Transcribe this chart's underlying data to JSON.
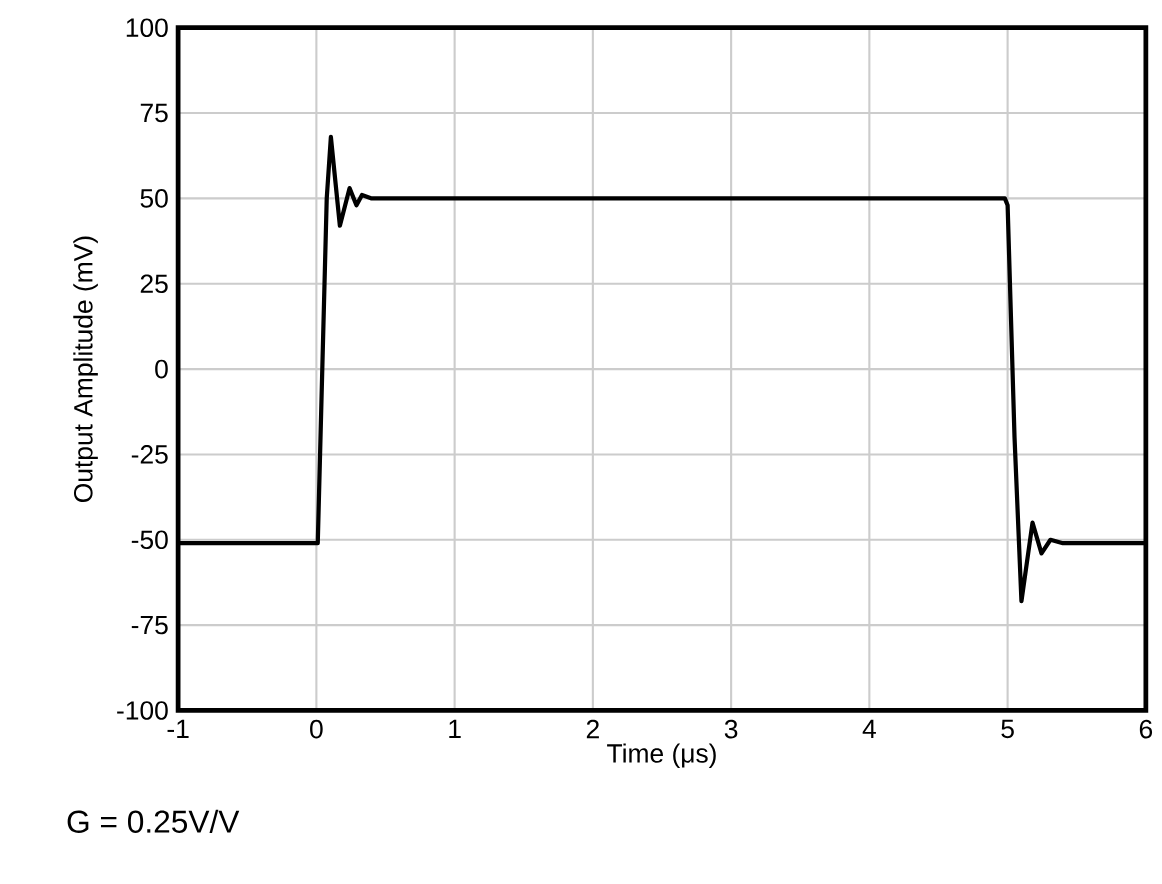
{
  "chart_data": {
    "type": "line",
    "xlabel": "Time (μs)",
    "ylabel": "Output Amplitude (mV)",
    "annotations": [
      "G = 0.25V/V"
    ],
    "x": [
      -1,
      0,
      0.01,
      0.075,
      0.105,
      0.17,
      0.24,
      0.29,
      0.33,
      0.4,
      1,
      2,
      3,
      4,
      4.98,
      5.0,
      5.05,
      5.1,
      5.18,
      5.245,
      5.31,
      5.4,
      6
    ],
    "series": [
      {
        "color": "#000000",
        "values": [
          -51,
          -51,
          -51,
          50,
          68,
          42,
          53,
          48,
          51,
          50,
          50,
          50,
          50,
          50,
          50,
          48,
          -20,
          -68,
          -45,
          -54,
          -50,
          -51,
          -51
        ]
      }
    ],
    "xlim": [
      -1,
      6
    ],
    "ylim": [
      -100,
      100
    ],
    "xticks": [
      -1,
      0,
      1,
      2,
      3,
      4,
      5,
      6
    ],
    "yticks": [
      -100,
      -75,
      -50,
      -25,
      0,
      25,
      50,
      75,
      100
    ],
    "grid": true,
    "line_style": "solid",
    "marker": "none"
  }
}
